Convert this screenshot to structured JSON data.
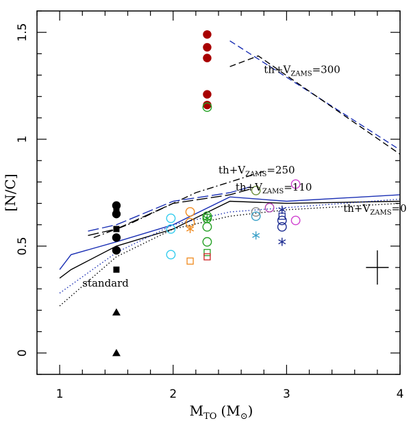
{
  "chart_data": {
    "type": "scatter",
    "title": "",
    "xlabel": {
      "main": "M",
      "sub": "TO",
      "unit": "(M",
      "unit_sub": "⊙",
      "unit_close": ")"
    },
    "ylabel": "[N/C]",
    "xlim": [
      0.8,
      4.0
    ],
    "ylim": [
      -0.1,
      1.6
    ],
    "xticks": [
      1,
      2,
      3,
      4
    ],
    "yticks": [
      0,
      0.5,
      1,
      1.5
    ],
    "ytick_labels": [
      "0",
      "0.5",
      "1",
      "1.5"
    ],
    "grid": false,
    "legend": "none",
    "lines": [
      {
        "name": "th+VZAMS=300 (blue)",
        "color": "#1a2fb4",
        "style": "dashed",
        "x": [
          2.5,
          4.0
        ],
        "y": [
          1.46,
          0.95
        ]
      },
      {
        "name": "th+VZAMS=300 (black)",
        "color": "#000000",
        "style": "dashed",
        "x": [
          2.5,
          2.75,
          4.0
        ],
        "y": [
          1.34,
          1.39,
          0.93
        ]
      },
      {
        "name": "th+VZAMS=250",
        "color": "#000000",
        "style": "dashdot",
        "x": [
          1.3,
          1.6,
          2.0,
          2.2,
          2.5,
          2.8
        ],
        "y": [
          0.54,
          0.6,
          0.7,
          0.75,
          0.8,
          0.85
        ]
      },
      {
        "name": "th+VZAMS=110 (blue)",
        "color": "#1a2fb4",
        "style": "longdash",
        "x": [
          1.25,
          1.5,
          2.0,
          2.5,
          2.7
        ],
        "y": [
          0.57,
          0.6,
          0.71,
          0.75,
          0.78
        ]
      },
      {
        "name": "th+VZAMS=110 (black)",
        "color": "#000000",
        "style": "longdash",
        "x": [
          1.25,
          1.5,
          2.0,
          2.5,
          2.7
        ],
        "y": [
          0.55,
          0.58,
          0.7,
          0.74,
          0.77
        ]
      },
      {
        "name": "th+VZAMS=0 (blue)",
        "color": "#1a2fb4",
        "style": "solid",
        "x": [
          1.0,
          1.1,
          1.5,
          2.0,
          2.5,
          3.0,
          4.0
        ],
        "y": [
          0.39,
          0.46,
          0.52,
          0.6,
          0.73,
          0.71,
          0.74
        ]
      },
      {
        "name": "th+VZAMS=0 (black)",
        "color": "#000000",
        "style": "solid",
        "x": [
          1.0,
          1.1,
          1.5,
          2.0,
          2.5,
          3.0,
          4.0
        ],
        "y": [
          0.35,
          0.39,
          0.5,
          0.58,
          0.71,
          0.7,
          0.71
        ]
      },
      {
        "name": "standard (blue)",
        "color": "#1a2fb4",
        "style": "dotted",
        "x": [
          1.0,
          1.5,
          2.0,
          2.5,
          3.0,
          4.0
        ],
        "y": [
          0.28,
          0.47,
          0.6,
          0.66,
          0.68,
          0.72
        ]
      },
      {
        "name": "standard (black)",
        "color": "#000000",
        "style": "dotted",
        "x": [
          1.0,
          1.5,
          2.0,
          2.5,
          3.0,
          4.0
        ],
        "y": [
          0.22,
          0.45,
          0.58,
          0.64,
          0.67,
          0.7
        ]
      }
    ],
    "points": [
      {
        "x": 1.5,
        "y": 0.69,
        "marker": "filled-circle",
        "color": "#000000"
      },
      {
        "x": 1.5,
        "y": 0.65,
        "marker": "filled-circle",
        "color": "#000000"
      },
      {
        "x": 1.5,
        "y": 0.54,
        "marker": "filled-circle",
        "color": "#000000"
      },
      {
        "x": 1.5,
        "y": 0.48,
        "marker": "filled-circle",
        "color": "#000000"
      },
      {
        "x": 1.5,
        "y": 0.67,
        "marker": "filled-square",
        "color": "#000000"
      },
      {
        "x": 1.5,
        "y": 0.58,
        "marker": "filled-square",
        "color": "#000000"
      },
      {
        "x": 1.5,
        "y": 0.39,
        "marker": "filled-square",
        "color": "#000000"
      },
      {
        "x": 1.5,
        "y": 0.19,
        "marker": "filled-triangle",
        "color": "#000000"
      },
      {
        "x": 1.5,
        "y": 0.0,
        "marker": "filled-triangle",
        "color": "#000000"
      },
      {
        "x": 2.3,
        "y": 1.49,
        "marker": "filled-circle",
        "color": "#a80000"
      },
      {
        "x": 2.3,
        "y": 1.43,
        "marker": "filled-circle",
        "color": "#a80000"
      },
      {
        "x": 2.3,
        "y": 1.38,
        "marker": "filled-circle",
        "color": "#a80000"
      },
      {
        "x": 2.3,
        "y": 1.21,
        "marker": "filled-circle",
        "color": "#a80000"
      },
      {
        "x": 2.3,
        "y": 1.16,
        "marker": "filled-circle",
        "color": "#a80000"
      },
      {
        "x": 2.3,
        "y": 1.15,
        "marker": "open-circle",
        "color": "#22a022"
      },
      {
        "x": 1.98,
        "y": 0.63,
        "marker": "open-circle",
        "color": "#33ccee"
      },
      {
        "x": 1.98,
        "y": 0.58,
        "marker": "open-circle",
        "color": "#33ccee"
      },
      {
        "x": 1.98,
        "y": 0.46,
        "marker": "open-circle",
        "color": "#33ccee"
      },
      {
        "x": 2.15,
        "y": 0.66,
        "marker": "open-circle",
        "color": "#f08a1e"
      },
      {
        "x": 2.15,
        "y": 0.61,
        "marker": "open-circle",
        "color": "#f08a1e"
      },
      {
        "x": 2.15,
        "y": 0.58,
        "marker": "asterisk",
        "color": "#f08a1e"
      },
      {
        "x": 2.15,
        "y": 0.43,
        "marker": "open-square",
        "color": "#f08a1e"
      },
      {
        "x": 2.3,
        "y": 0.64,
        "marker": "open-circle",
        "color": "#22a022"
      },
      {
        "x": 2.3,
        "y": 0.63,
        "marker": "open-circle",
        "color": "#22a022"
      },
      {
        "x": 2.3,
        "y": 0.59,
        "marker": "open-circle",
        "color": "#22a022"
      },
      {
        "x": 2.3,
        "y": 0.52,
        "marker": "open-circle",
        "color": "#22a022"
      },
      {
        "x": 2.3,
        "y": 0.47,
        "marker": "open-square",
        "color": "#22a022"
      },
      {
        "x": 2.3,
        "y": 0.45,
        "marker": "open-square",
        "color": "#cc2222"
      },
      {
        "x": 2.3,
        "y": 0.63,
        "marker": "asterisk",
        "color": "#22a022"
      },
      {
        "x": 2.73,
        "y": 0.76,
        "marker": "open-circle",
        "color": "#6b8e3a"
      },
      {
        "x": 2.73,
        "y": 0.66,
        "marker": "open-circle",
        "color": "#888888"
      },
      {
        "x": 2.73,
        "y": 0.64,
        "marker": "open-circle",
        "color": "#3aa0c8"
      },
      {
        "x": 2.73,
        "y": 0.55,
        "marker": "asterisk",
        "color": "#3aa0c8"
      },
      {
        "x": 2.85,
        "y": 0.68,
        "marker": "open-circle",
        "color": "#b040b0"
      },
      {
        "x": 2.96,
        "y": 0.67,
        "marker": "asterisk",
        "color": "#1a2a90"
      },
      {
        "x": 2.96,
        "y": 0.64,
        "marker": "open-square",
        "color": "#1a2a90"
      },
      {
        "x": 2.96,
        "y": 0.62,
        "marker": "open-circle",
        "color": "#1a2a90"
      },
      {
        "x": 2.96,
        "y": 0.59,
        "marker": "open-circle",
        "color": "#1a2a90"
      },
      {
        "x": 2.96,
        "y": 0.52,
        "marker": "asterisk",
        "color": "#1a2a90"
      },
      {
        "x": 3.08,
        "y": 0.79,
        "marker": "open-circle",
        "color": "#d040d0"
      },
      {
        "x": 3.08,
        "y": 0.62,
        "marker": "open-circle",
        "color": "#d040d0"
      }
    ],
    "error_bar": {
      "x": 3.8,
      "y": 0.4,
      "xerr": 0.1,
      "yerr": 0.08
    },
    "annotations": [
      {
        "main": "th+V",
        "sub": "ZAMS",
        "rest": "=300",
        "x": 2.8,
        "y": 1.31
      },
      {
        "main": "th+V",
        "sub": "ZAMS",
        "rest": "=250",
        "x": 2.4,
        "y": 0.84
      },
      {
        "main": "th+V",
        "sub": "ZAMS",
        "rest": "=110",
        "x": 2.55,
        "y": 0.76
      },
      {
        "main": "th+V",
        "sub": "ZAMS",
        "rest": "=0",
        "x": 3.5,
        "y": 0.66
      },
      {
        "main": "standard",
        "sub": "",
        "rest": "",
        "x": 1.2,
        "y": 0.31
      }
    ]
  }
}
